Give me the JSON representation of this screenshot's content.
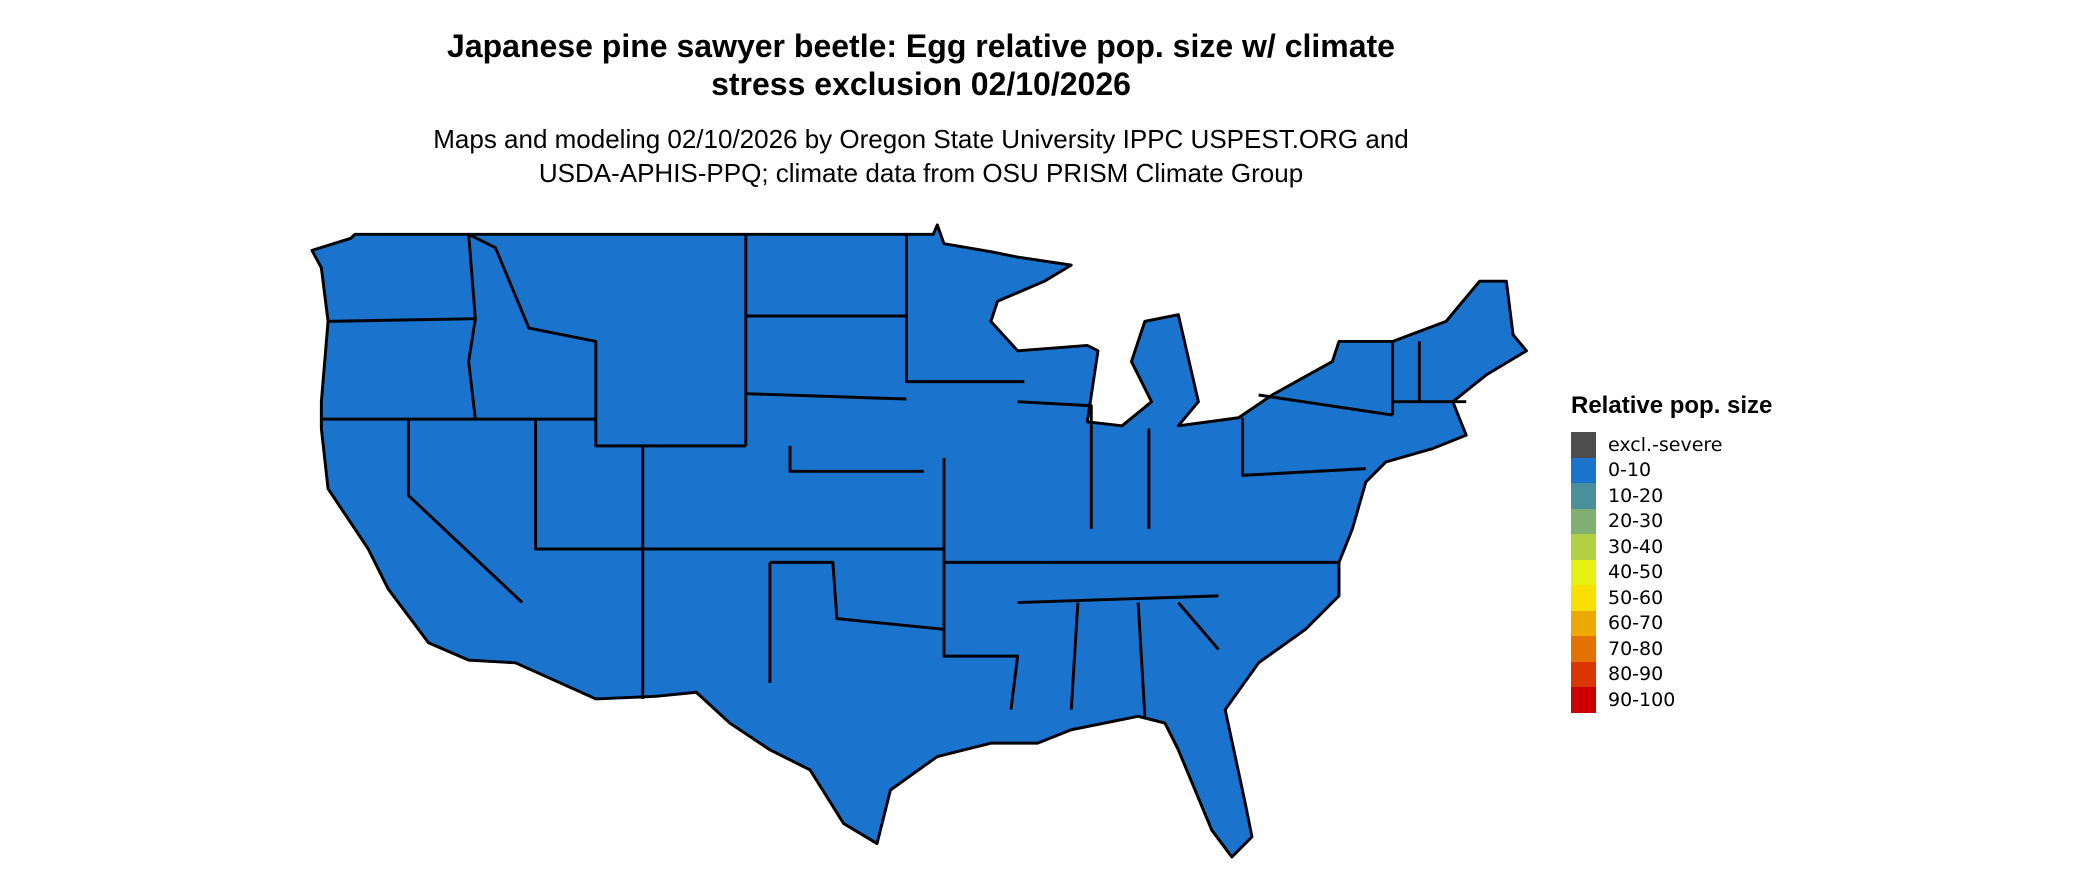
{
  "title_line1": "Japanese pine sawyer beetle: Egg relative pop. size w/ climate",
  "title_line2": "stress exclusion 02/10/2026",
  "subtitle_line1": "Maps and modeling 02/10/2026 by Oregon State University IPPC USPEST.ORG and",
  "subtitle_line2": "USDA-APHIS-PPQ; climate data from OSU PRISM Climate Group",
  "map": {
    "region": "Contiguous United States",
    "fill_category": "0-10",
    "fill_color": "#1a73cc"
  },
  "legend": {
    "title": "Relative pop. size",
    "items": [
      {
        "label": "excl.-severe",
        "color": "#4d4d4d"
      },
      {
        "label": "0-10",
        "color": "#1a73cc"
      },
      {
        "label": "10-20",
        "color": "#4a8f9c"
      },
      {
        "label": "20-30",
        "color": "#7fb072"
      },
      {
        "label": "30-40",
        "color": "#b2d044"
      },
      {
        "label": "40-50",
        "color": "#e6f014"
      },
      {
        "label": "50-60",
        "color": "#f8e000"
      },
      {
        "label": "60-70",
        "color": "#eea900"
      },
      {
        "label": "70-80",
        "color": "#e37200"
      },
      {
        "label": "80-90",
        "color": "#d93600"
      },
      {
        "label": "90-100",
        "color": "#cc0000"
      }
    ]
  }
}
